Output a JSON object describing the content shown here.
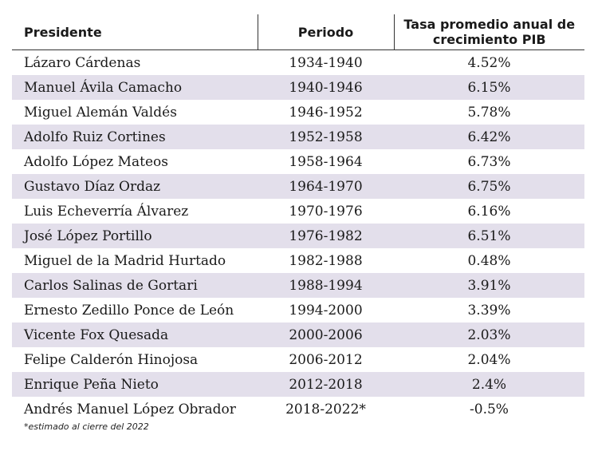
{
  "table": {
    "headers": [
      "Presidente",
      "Periodo",
      "Tasa promedio anual de crecimiento PIB"
    ],
    "rows": [
      [
        "Lázaro Cárdenas",
        "1934-1940",
        "4.52%"
      ],
      [
        "Manuel Ávila Camacho",
        "1940-1946",
        "6.15%"
      ],
      [
        "Miguel Alemán Valdés",
        "1946-1952",
        "5.78%"
      ],
      [
        "Adolfo Ruiz Cortines",
        "1952-1958",
        "6.42%"
      ],
      [
        "Adolfo López Mateos",
        "1958-1964",
        "6.73%"
      ],
      [
        "Gustavo Díaz Ordaz",
        "1964-1970",
        "6.75%"
      ],
      [
        "Luis Echeverría Álvarez",
        "1970-1976",
        "6.16%"
      ],
      [
        "José López Portillo",
        "1976-1982",
        "6.51%"
      ],
      [
        "Miguel de la Madrid Hurtado",
        "1982-1988",
        "0.48%"
      ],
      [
        "Carlos Salinas de Gortari",
        "1988-1994",
        "3.91%"
      ],
      [
        "Ernesto Zedillo Ponce de León",
        "1994-2000",
        "3.39%"
      ],
      [
        "Vicente Fox Quesada",
        "2000-2006",
        "2.03%"
      ],
      [
        "Felipe Calderón Hinojosa",
        "2006-2012",
        "2.04%"
      ],
      [
        "Enrique Peña Nieto",
        "2012-2018",
        "2.4%"
      ],
      [
        "Andrés Manuel López Obrador",
        "2018-2022*",
        "-0.5%"
      ]
    ],
    "footnote": "*estimado al cierre del 2022"
  }
}
